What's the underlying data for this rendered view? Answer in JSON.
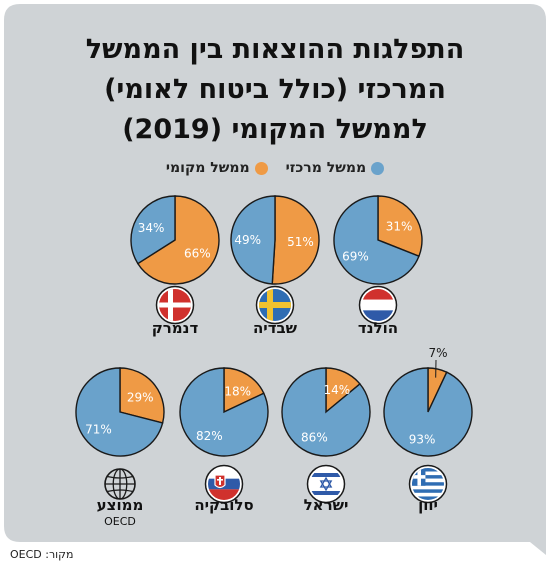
{
  "title_lines": [
    "התפלגות ההוצאות בין הממשל",
    "המרכזי (כולל ביטוח לאומי)",
    "לממשל המקומי (2019)"
  ],
  "legend": {
    "central": "ממשל מרכזי",
    "local": "ממשל מקומי"
  },
  "colors": {
    "central": "#6aa2cb",
    "local": "#ef9a45",
    "background": "#cfd3d6",
    "outline": "#1a1a1a"
  },
  "source": "מקור: OECD",
  "chart_data": {
    "type": "pie",
    "series_names": [
      "ממשל מרכזי",
      "ממשל מקומי"
    ],
    "charts": [
      {
        "country": "הולנד",
        "flag": "netherlands-flag-icon",
        "central": 69,
        "local": 31,
        "central_label": "69%",
        "local_label": "31%"
      },
      {
        "country": "שבדיה",
        "flag": "sweden-flag-icon",
        "central": 49,
        "local": 51,
        "central_label": "49%",
        "local_label": "51%"
      },
      {
        "country": "דנמרק",
        "flag": "denmark-flag-icon",
        "central": 34,
        "local": 66,
        "central_label": "34%",
        "local_label": "66%"
      },
      {
        "country": "יוון",
        "flag": "greece-flag-icon",
        "central": 93,
        "local": 7,
        "central_label": "93%",
        "local_label": "7%"
      },
      {
        "country": "ישראל",
        "flag": "israel-flag-icon",
        "central": 86,
        "local": 14,
        "central_label": "86%",
        "local_label": "14%"
      },
      {
        "country": "סלובקיה",
        "flag": "slovakia-flag-icon",
        "central": 82,
        "local": 18,
        "central_label": "82%",
        "local_label": "18%"
      },
      {
        "country": "ממוצע",
        "sub": "OECD",
        "flag": "globe-icon",
        "central": 71,
        "local": 29,
        "central_label": "71%",
        "local_label": "29%"
      }
    ]
  }
}
